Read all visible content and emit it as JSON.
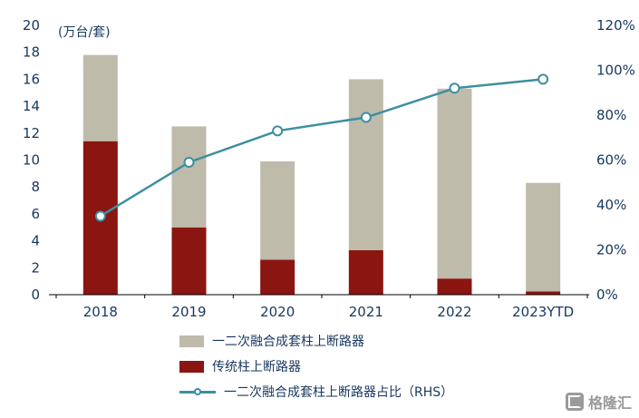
{
  "chart_data": {
    "type": "bar",
    "subtype": "stacked-bar-with-line",
    "title": "",
    "categories": [
      "2018",
      "2019",
      "2020",
      "2021",
      "2022",
      "2023YTD"
    ],
    "series": [
      {
        "name": "一二次融合成套柱上断路器",
        "type": "bar",
        "stack": "total",
        "stack_order": "top",
        "axis": "left",
        "color": "#BFBBAB",
        "values": [
          6.4,
          7.5,
          7.3,
          12.7,
          14.1,
          8.05
        ]
      },
      {
        "name": "传统柱上断路器",
        "type": "bar",
        "stack": "total",
        "stack_order": "bottom",
        "axis": "left",
        "color": "#8A1511",
        "values": [
          11.4,
          5.0,
          2.6,
          3.3,
          1.2,
          0.25
        ]
      },
      {
        "name": "一二次融合成套柱上断路器占比（RHS）",
        "type": "line",
        "axis": "right",
        "color": "#3C8FA0",
        "marker": "open-circle",
        "values": [
          35,
          59,
          73,
          79,
          92,
          96
        ]
      }
    ],
    "left_axis": {
      "label": "(万台/套)",
      "min": 0,
      "max": 20,
      "step": 2
    },
    "right_axis": {
      "min": 0,
      "max": 120,
      "step": 20,
      "suffix": "%"
    },
    "legend_position": "bottom",
    "grid": false
  },
  "watermark": {
    "text": "格隆汇"
  },
  "colors": {
    "axis_text": "#17375E",
    "axis_line": "#000000",
    "background": "#FFFFFF",
    "watermark": "#9A9A9A"
  }
}
